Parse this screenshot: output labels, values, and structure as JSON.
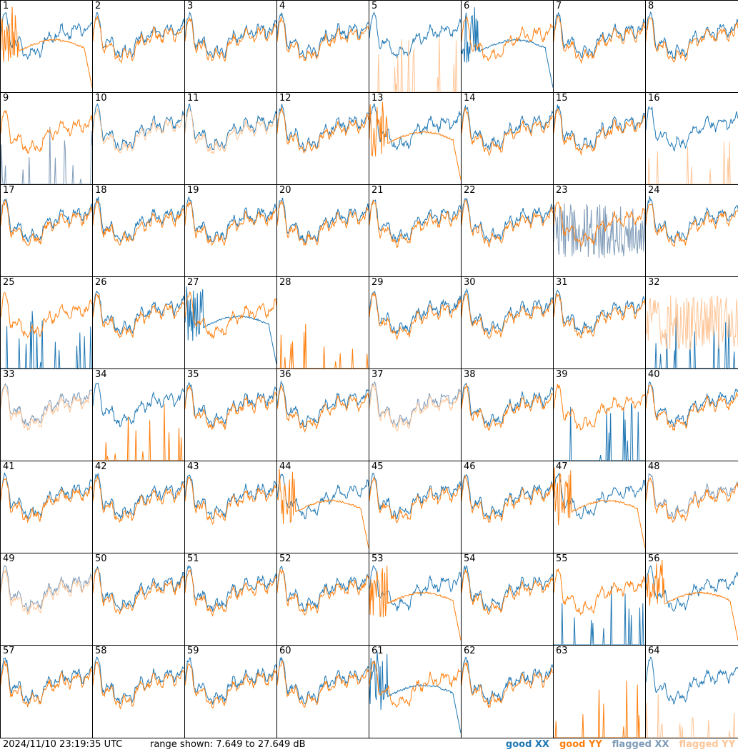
{
  "footer": {
    "timestamp": "2024/11/10 23:19:35 UTC",
    "range": "range shown: 7.649 to 27.649 dB"
  },
  "legend": [
    {
      "label": "good XX",
      "color": "#1f77b4"
    },
    {
      "label": "good YY",
      "color": "#ff7f0e"
    },
    {
      "label": "flagged XX",
      "color": "#7f9bb8"
    },
    {
      "label": "flagged YY",
      "color": "#ffc596"
    }
  ],
  "chart_data": {
    "type": "line",
    "layout": "small multiples 8x8",
    "ylim": [
      7.649,
      27.649
    ],
    "yunit": "dB",
    "panels": [
      {
        "id": 1,
        "xx": "good",
        "yy": "good",
        "xx_shape": "normal",
        "yy_shape": "broken"
      },
      {
        "id": 2,
        "xx": "good",
        "yy": "good",
        "xx_shape": "normal",
        "yy_shape": "normal"
      },
      {
        "id": 3,
        "xx": "good",
        "yy": "good",
        "xx_shape": "normal",
        "yy_shape": "normal"
      },
      {
        "id": 4,
        "xx": "good",
        "yy": "good",
        "xx_shape": "normal",
        "yy_shape": "normal"
      },
      {
        "id": 5,
        "xx": "good",
        "yy": "flagged",
        "xx_shape": "normal",
        "yy_shape": "spikes"
      },
      {
        "id": 6,
        "xx": "good",
        "yy": "good",
        "xx_shape": "broken",
        "yy_shape": "normal"
      },
      {
        "id": 7,
        "xx": "good",
        "yy": "good",
        "xx_shape": "normal",
        "yy_shape": "normal"
      },
      {
        "id": 8,
        "xx": "good",
        "yy": "good",
        "xx_shape": "normal",
        "yy_shape": "normal"
      },
      {
        "id": 9,
        "xx": "flagged",
        "yy": "good",
        "xx_shape": "spikes",
        "yy_shape": "normal"
      },
      {
        "id": 10,
        "xx": "good",
        "yy": "flagged",
        "xx_shape": "normal",
        "yy_shape": "normal"
      },
      {
        "id": 11,
        "xx": "good",
        "yy": "flagged",
        "xx_shape": "normal",
        "yy_shape": "normal"
      },
      {
        "id": 12,
        "xx": "good",
        "yy": "good",
        "xx_shape": "normal",
        "yy_shape": "normal"
      },
      {
        "id": 13,
        "xx": "good",
        "yy": "good",
        "xx_shape": "normal",
        "yy_shape": "broken"
      },
      {
        "id": 14,
        "xx": "good",
        "yy": "good",
        "xx_shape": "normal",
        "yy_shape": "normal"
      },
      {
        "id": 15,
        "xx": "good",
        "yy": "good",
        "xx_shape": "normal",
        "yy_shape": "normal"
      },
      {
        "id": 16,
        "xx": "good",
        "yy": "flagged",
        "xx_shape": "normal",
        "yy_shape": "spikes"
      },
      {
        "id": 17,
        "xx": "good",
        "yy": "good",
        "xx_shape": "normal",
        "yy_shape": "normal"
      },
      {
        "id": 18,
        "xx": "good",
        "yy": "good",
        "xx_shape": "normal",
        "yy_shape": "normal"
      },
      {
        "id": 19,
        "xx": "good",
        "yy": "good",
        "xx_shape": "normal",
        "yy_shape": "normal"
      },
      {
        "id": 20,
        "xx": "good",
        "yy": "good",
        "xx_shape": "normal",
        "yy_shape": "normal"
      },
      {
        "id": 21,
        "xx": "good",
        "yy": "good",
        "xx_shape": "normal",
        "yy_shape": "normal"
      },
      {
        "id": 22,
        "xx": "good",
        "yy": "good",
        "xx_shape": "normal",
        "yy_shape": "normal"
      },
      {
        "id": 23,
        "xx": "flagged",
        "yy": "good",
        "xx_shape": "noisy",
        "yy_shape": "normal"
      },
      {
        "id": 24,
        "xx": "good",
        "yy": "good",
        "xx_shape": "normal",
        "yy_shape": "normal"
      },
      {
        "id": 25,
        "xx": "good",
        "yy": "good",
        "xx_shape": "spikes",
        "yy_shape": "normal"
      },
      {
        "id": 26,
        "xx": "good",
        "yy": "good",
        "xx_shape": "normal",
        "yy_shape": "normal"
      },
      {
        "id": 27,
        "xx": "good",
        "yy": "good",
        "xx_shape": "broken",
        "yy_shape": "normal"
      },
      {
        "id": 28,
        "xx": "good",
        "yy": "good",
        "xx_shape": "none",
        "yy_shape": "spikes"
      },
      {
        "id": 29,
        "xx": "good",
        "yy": "good",
        "xx_shape": "normal",
        "yy_shape": "normal"
      },
      {
        "id": 30,
        "xx": "good",
        "yy": "good",
        "xx_shape": "normal",
        "yy_shape": "normal"
      },
      {
        "id": 31,
        "xx": "good",
        "yy": "good",
        "xx_shape": "normal",
        "yy_shape": "normal"
      },
      {
        "id": 32,
        "xx": "good",
        "yy": "flagged",
        "xx_shape": "spikes",
        "yy_shape": "noisy"
      },
      {
        "id": 33,
        "xx": "flagged",
        "yy": "flagged",
        "xx_shape": "normal",
        "yy_shape": "normal"
      },
      {
        "id": 34,
        "xx": "good",
        "yy": "good",
        "xx_shape": "normal",
        "yy_shape": "spikes"
      },
      {
        "id": 35,
        "xx": "good",
        "yy": "good",
        "xx_shape": "normal",
        "yy_shape": "normal"
      },
      {
        "id": 36,
        "xx": "good",
        "yy": "good",
        "xx_shape": "normal",
        "yy_shape": "normal"
      },
      {
        "id": 37,
        "xx": "flagged",
        "yy": "flagged",
        "xx_shape": "normal",
        "yy_shape": "normal"
      },
      {
        "id": 38,
        "xx": "good",
        "yy": "good",
        "xx_shape": "normal",
        "yy_shape": "normal"
      },
      {
        "id": 39,
        "xx": "good",
        "yy": "good",
        "xx_shape": "spikes",
        "yy_shape": "normal"
      },
      {
        "id": 40,
        "xx": "good",
        "yy": "good",
        "xx_shape": "normal",
        "yy_shape": "normal"
      },
      {
        "id": 41,
        "xx": "good",
        "yy": "good",
        "xx_shape": "normal",
        "yy_shape": "normal"
      },
      {
        "id": 42,
        "xx": "good",
        "yy": "good",
        "xx_shape": "normal",
        "yy_shape": "normal"
      },
      {
        "id": 43,
        "xx": "good",
        "yy": "good",
        "xx_shape": "normal",
        "yy_shape": "normal"
      },
      {
        "id": 44,
        "xx": "good",
        "yy": "good",
        "xx_shape": "normal",
        "yy_shape": "broken"
      },
      {
        "id": 45,
        "xx": "good",
        "yy": "good",
        "xx_shape": "normal",
        "yy_shape": "normal"
      },
      {
        "id": 46,
        "xx": "good",
        "yy": "good",
        "xx_shape": "normal",
        "yy_shape": "normal"
      },
      {
        "id": 47,
        "xx": "good",
        "yy": "good",
        "xx_shape": "normal",
        "yy_shape": "broken"
      },
      {
        "id": 48,
        "xx": "flagged",
        "yy": "good",
        "xx_shape": "normal",
        "yy_shape": "normal"
      },
      {
        "id": 49,
        "xx": "flagged",
        "yy": "flagged",
        "xx_shape": "normal",
        "yy_shape": "normal"
      },
      {
        "id": 50,
        "xx": "good",
        "yy": "good",
        "xx_shape": "normal",
        "yy_shape": "normal"
      },
      {
        "id": 51,
        "xx": "good",
        "yy": "good",
        "xx_shape": "normal",
        "yy_shape": "normal"
      },
      {
        "id": 52,
        "xx": "good",
        "yy": "good",
        "xx_shape": "normal",
        "yy_shape": "normal"
      },
      {
        "id": 53,
        "xx": "good",
        "yy": "good",
        "xx_shape": "normal",
        "yy_shape": "broken"
      },
      {
        "id": 54,
        "xx": "good",
        "yy": "good",
        "xx_shape": "normal",
        "yy_shape": "normal"
      },
      {
        "id": 55,
        "xx": "good",
        "yy": "good",
        "xx_shape": "spikes",
        "yy_shape": "normal"
      },
      {
        "id": 56,
        "xx": "good",
        "yy": "good",
        "xx_shape": "normal",
        "yy_shape": "broken"
      },
      {
        "id": 57,
        "xx": "good",
        "yy": "good",
        "xx_shape": "normal",
        "yy_shape": "normal"
      },
      {
        "id": 58,
        "xx": "good",
        "yy": "good",
        "xx_shape": "normal",
        "yy_shape": "normal"
      },
      {
        "id": 59,
        "xx": "good",
        "yy": "good",
        "xx_shape": "normal",
        "yy_shape": "normal"
      },
      {
        "id": 60,
        "xx": "good",
        "yy": "good",
        "xx_shape": "normal",
        "yy_shape": "normal"
      },
      {
        "id": 61,
        "xx": "good",
        "yy": "good",
        "xx_shape": "broken",
        "yy_shape": "normal"
      },
      {
        "id": 62,
        "xx": "good",
        "yy": "good",
        "xx_shape": "normal",
        "yy_shape": "normal"
      },
      {
        "id": 63,
        "xx": "good",
        "yy": "good",
        "xx_shape": "none",
        "yy_shape": "spikes"
      },
      {
        "id": 64,
        "xx": "good",
        "yy": "flagged",
        "xx_shape": "normal",
        "yy_shape": "spikes"
      }
    ]
  }
}
